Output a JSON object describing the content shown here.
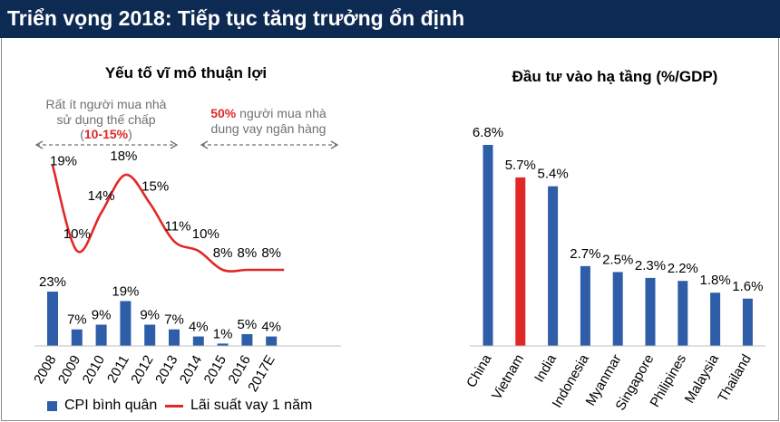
{
  "header": {
    "title": "Triển vọng 2018: Tiếp tục tăng trưởng ổn định"
  },
  "colors": {
    "header_bg": "#0d2a52",
    "bar_blue": "#2e5ea8",
    "accent_red": "#e02828",
    "note_gray": "#707070"
  },
  "annotations": {
    "left": {
      "line1": "Rất ít người mua nhà",
      "line2": "sử dụng thế chấp",
      "open": "(",
      "highlight": "10-15%",
      "close": ")"
    },
    "right": {
      "highlight": "50%",
      "line1_rest": " người mua nhà",
      "line2": "dung vay ngân hàng"
    }
  },
  "legend": {
    "cpi": "CPI bình quân",
    "rate": "Lãi suất vay 1 năm"
  },
  "chart_data": [
    {
      "type": "bar",
      "title": "Yếu tố vĩ mô thuận lợi",
      "categories": [
        "2008",
        "2009",
        "2010",
        "2011",
        "2012",
        "2013",
        "2014",
        "2015",
        "2016",
        "2017E"
      ],
      "series": [
        {
          "name": "CPI bình quân",
          "type": "bar",
          "values": [
            23,
            7,
            9,
            19,
            9,
            7,
            4,
            1,
            5,
            4
          ],
          "labels": [
            "23%",
            "7%",
            "9%",
            "19%",
            "9%",
            "7%",
            "4%",
            "1%",
            "5%",
            "4%"
          ]
        },
        {
          "name": "Lãi suất vay 1 năm",
          "type": "line",
          "values": [
            19,
            10,
            14,
            18,
            15,
            11,
            10,
            8,
            8,
            8
          ],
          "labels": [
            "19%",
            "10%",
            "14%",
            "18%",
            "15%",
            "11%",
            "10%",
            "8%",
            "8%",
            "8%"
          ]
        }
      ]
    },
    {
      "type": "bar",
      "title": "Đầu tư vào hạ tầng (%/GDP)",
      "categories": [
        "China",
        "Vietnam",
        "India",
        "Indonesia",
        "Myanmar",
        "Singapore",
        "Philipines",
        "Malaysia",
        "Thailand"
      ],
      "values": [
        6.8,
        5.7,
        5.4,
        2.7,
        2.5,
        2.3,
        2.2,
        1.8,
        1.6
      ],
      "labels": [
        "6.8%",
        "5.7%",
        "5.4%",
        "2.7%",
        "2.5%",
        "2.3%",
        "2.2%",
        "1.8%",
        "1.6%"
      ],
      "highlight": "Vietnam"
    }
  ]
}
